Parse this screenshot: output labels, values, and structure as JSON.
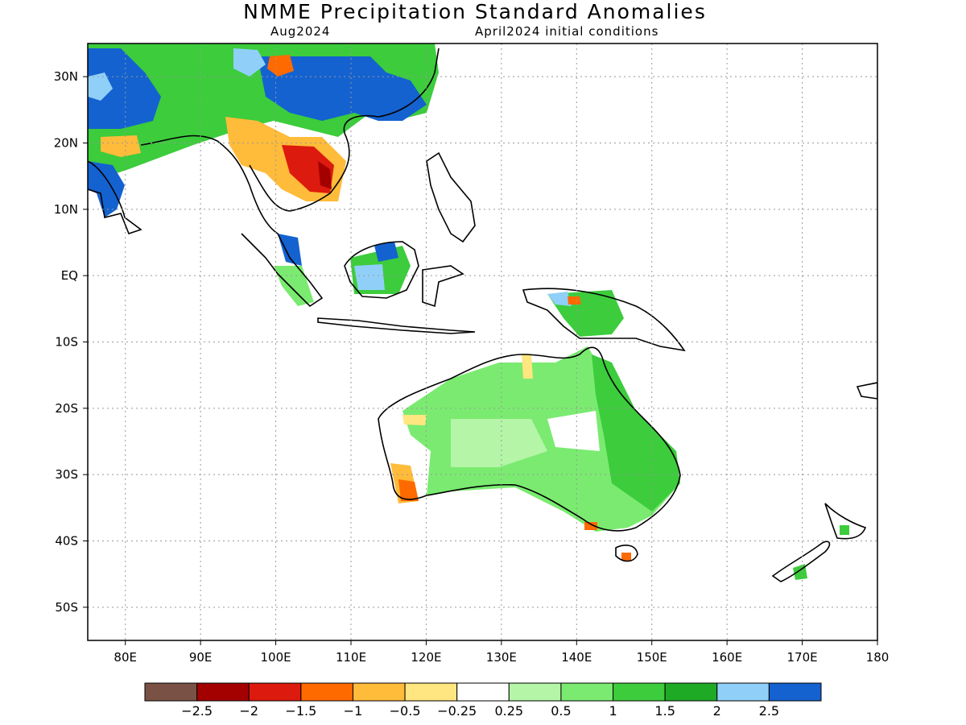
{
  "title": "NMME Precipitation Standard Anomalies",
  "subtitle_left": "Aug2024",
  "subtitle_right": "April2024 initial conditions",
  "map": {
    "lon_range": [
      75,
      180
    ],
    "lat_range": [
      -55,
      35
    ],
    "lat_ticks": [
      {
        "value": 30,
        "label": "30N"
      },
      {
        "value": 20,
        "label": "20N"
      },
      {
        "value": 10,
        "label": "10N"
      },
      {
        "value": 0,
        "label": "EQ"
      },
      {
        "value": -10,
        "label": "10S"
      },
      {
        "value": -20,
        "label": "20S"
      },
      {
        "value": -30,
        "label": "30S"
      },
      {
        "value": -40,
        "label": "40S"
      },
      {
        "value": -50,
        "label": "50S"
      }
    ],
    "lon_ticks": [
      {
        "value": 80,
        "label": "80E"
      },
      {
        "value": 90,
        "label": "90E"
      },
      {
        "value": 100,
        "label": "100E"
      },
      {
        "value": 110,
        "label": "110E"
      },
      {
        "value": 120,
        "label": "120E"
      },
      {
        "value": 130,
        "label": "130E"
      },
      {
        "value": 140,
        "label": "140E"
      },
      {
        "value": 150,
        "label": "150E"
      },
      {
        "value": 160,
        "label": "160E"
      },
      {
        "value": 170,
        "label": "170E"
      },
      {
        "value": 180,
        "label": "180"
      }
    ],
    "gridlines": "dotted"
  },
  "colorbar": {
    "colors": [
      "#7a5245",
      "#a30000",
      "#dd1a0e",
      "#ff6a00",
      "#ffbb3a",
      "#ffe680",
      "#ffffff",
      "#b5f5a8",
      "#7aeb70",
      "#3ccc3c",
      "#1faa26",
      "#90d0f8",
      "#1462d0"
    ],
    "labels": [
      "−2.5",
      "−2",
      "−1.5",
      "−1",
      "−0.5",
      "−0.25",
      "0.25",
      "0.5",
      "1",
      "1.5",
      "2",
      "2.5"
    ]
  }
}
